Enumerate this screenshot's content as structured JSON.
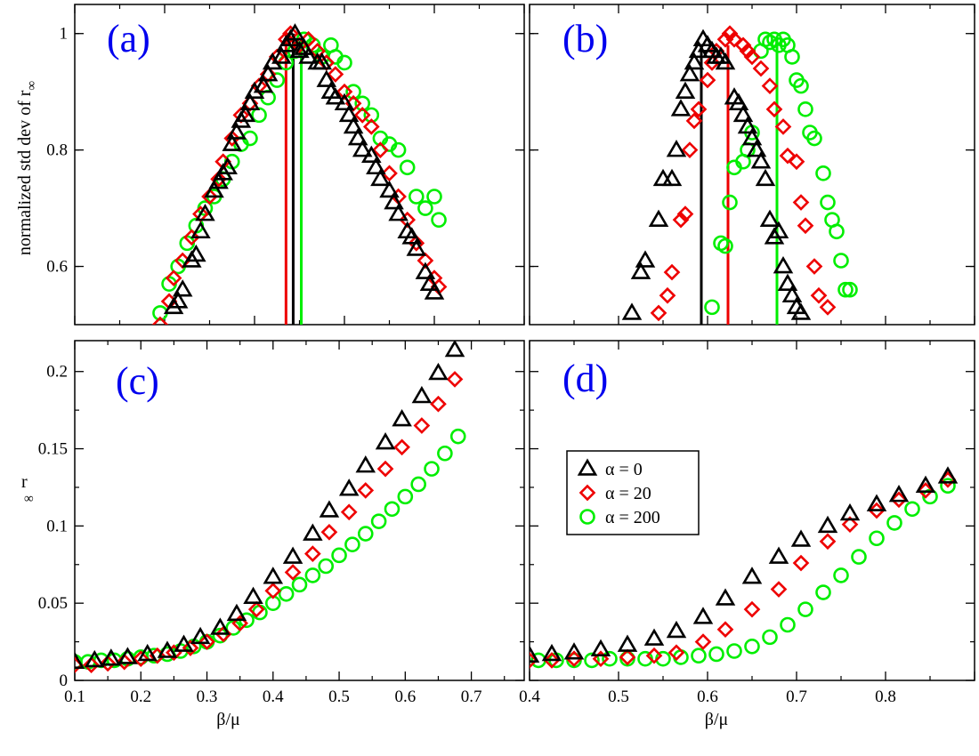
{
  "colors": {
    "alpha0": "#000000",
    "alpha20": "#ee0000",
    "alpha200": "#00ee00",
    "label": "#0000ee"
  },
  "chart_data": [
    {
      "id": "a",
      "type": "scatter",
      "panel_label": "(a)",
      "xlim": [
        0.1,
        0.6
      ],
      "ylim": [
        0.5,
        1.05
      ],
      "ylabel": "normalized std dev of r",
      "ylabel_sub": "∞",
      "xlabel": "",
      "yticks": [
        0.6,
        0.8,
        1.0
      ],
      "ytick_labels": [
        "0.6",
        "0.8",
        "1"
      ],
      "xticks": [],
      "xtick_labels": [],
      "vlines": [
        {
          "series": "α = 0",
          "x": 0.343,
          "y_top": 1.0
        },
        {
          "series": "α = 20",
          "x": 0.335,
          "y_top": 0.99
        },
        {
          "series": "α = 200",
          "x": 0.352,
          "y_top": 0.99
        }
      ],
      "series": [
        {
          "name": "α = 0",
          "marker": "triangle",
          "x": [
            0.21,
            0.215,
            0.22,
            0.23,
            0.235,
            0.24,
            0.245,
            0.255,
            0.26,
            0.265,
            0.27,
            0.275,
            0.28,
            0.285,
            0.29,
            0.295,
            0.3,
            0.31,
            0.315,
            0.32,
            0.33,
            0.335,
            0.34,
            0.345,
            0.35,
            0.355,
            0.36,
            0.37,
            0.375,
            0.38,
            0.385,
            0.39,
            0.4,
            0.405,
            0.41,
            0.415,
            0.42,
            0.43,
            0.435,
            0.44,
            0.45,
            0.455,
            0.46,
            0.47,
            0.475,
            0.48,
            0.49,
            0.495,
            0.5
          ],
          "y": [
            0.53,
            0.54,
            0.56,
            0.61,
            0.62,
            0.66,
            0.69,
            0.73,
            0.745,
            0.76,
            0.77,
            0.81,
            0.83,
            0.85,
            0.86,
            0.88,
            0.9,
            0.91,
            0.93,
            0.95,
            0.96,
            0.98,
            0.99,
            1.0,
            0.97,
            0.975,
            0.96,
            0.95,
            0.95,
            0.92,
            0.9,
            0.89,
            0.88,
            0.86,
            0.84,
            0.82,
            0.8,
            0.79,
            0.77,
            0.75,
            0.73,
            0.71,
            0.69,
            0.66,
            0.65,
            0.63,
            0.59,
            0.57,
            0.555
          ]
        },
        {
          "name": "α = 20",
          "marker": "diamond",
          "x": [
            0.195,
            0.205,
            0.21,
            0.22,
            0.23,
            0.24,
            0.25,
            0.26,
            0.265,
            0.275,
            0.285,
            0.295,
            0.305,
            0.315,
            0.325,
            0.335,
            0.34,
            0.35,
            0.36,
            0.37,
            0.38,
            0.39,
            0.4,
            0.41,
            0.42,
            0.43,
            0.44,
            0.45,
            0.46,
            0.47,
            0.48,
            0.49,
            0.5,
            0.505
          ],
          "y": [
            0.5,
            0.54,
            0.58,
            0.61,
            0.65,
            0.69,
            0.72,
            0.75,
            0.78,
            0.82,
            0.86,
            0.88,
            0.91,
            0.93,
            0.96,
            0.99,
            1.0,
            0.98,
            0.99,
            0.97,
            0.95,
            0.93,
            0.9,
            0.88,
            0.86,
            0.84,
            0.8,
            0.76,
            0.72,
            0.68,
            0.64,
            0.61,
            0.58,
            0.565
          ]
        },
        {
          "name": "α = 200",
          "marker": "circle",
          "x": [
            0.195,
            0.205,
            0.215,
            0.225,
            0.235,
            0.245,
            0.255,
            0.265,
            0.275,
            0.285,
            0.295,
            0.305,
            0.315,
            0.325,
            0.335,
            0.345,
            0.355,
            0.365,
            0.375,
            0.385,
            0.39,
            0.4,
            0.41,
            0.42,
            0.43,
            0.44,
            0.45,
            0.46,
            0.47,
            0.48,
            0.49,
            0.5,
            0.505
          ],
          "y": [
            0.52,
            0.57,
            0.6,
            0.64,
            0.67,
            0.7,
            0.72,
            0.75,
            0.78,
            0.81,
            0.82,
            0.86,
            0.89,
            0.92,
            0.95,
            0.97,
            0.99,
            0.98,
            0.96,
            0.98,
            0.96,
            0.95,
            0.9,
            0.88,
            0.86,
            0.82,
            0.81,
            0.8,
            0.77,
            0.72,
            0.7,
            0.72,
            0.68
          ]
        }
      ]
    },
    {
      "id": "b",
      "type": "scatter",
      "panel_label": "(b)",
      "xlim": [
        0.4,
        0.9
      ],
      "ylim": [
        0.5,
        1.05
      ],
      "ylabel": "",
      "ylabel_sub": "",
      "xlabel": "",
      "yticks": [
        0.6,
        0.8,
        1.0
      ],
      "ytick_labels": [],
      "xticks": [],
      "xtick_labels": [],
      "vlines": [
        {
          "series": "α = 0",
          "x": 0.593,
          "y_top": 0.97
        },
        {
          "series": "α = 20",
          "x": 0.623,
          "y_top": 0.98
        },
        {
          "series": "α = 200",
          "x": 0.678,
          "y_top": 0.99
        }
      ],
      "series": [
        {
          "name": "α = 0",
          "marker": "triangle",
          "x": [
            0.515,
            0.525,
            0.53,
            0.545,
            0.55,
            0.56,
            0.565,
            0.57,
            0.575,
            0.58,
            0.585,
            0.59,
            0.595,
            0.6,
            0.605,
            0.61,
            0.615,
            0.62,
            0.63,
            0.635,
            0.64,
            0.645,
            0.65,
            0.655,
            0.66,
            0.665,
            0.67,
            0.675,
            0.68,
            0.685,
            0.69,
            0.695,
            0.7,
            0.705
          ],
          "y": [
            0.52,
            0.59,
            0.61,
            0.68,
            0.75,
            0.75,
            0.8,
            0.87,
            0.9,
            0.93,
            0.95,
            0.97,
            0.99,
            0.98,
            0.97,
            0.96,
            0.96,
            0.95,
            0.89,
            0.88,
            0.86,
            0.84,
            0.82,
            0.8,
            0.78,
            0.75,
            0.68,
            0.65,
            0.66,
            0.6,
            0.57,
            0.55,
            0.53,
            0.52
          ]
        },
        {
          "name": "α = 20",
          "marker": "diamond",
          "x": [
            0.545,
            0.555,
            0.56,
            0.57,
            0.575,
            0.58,
            0.585,
            0.59,
            0.6,
            0.605,
            0.61,
            0.62,
            0.625,
            0.63,
            0.64,
            0.645,
            0.65,
            0.66,
            0.67,
            0.675,
            0.685,
            0.69,
            0.7,
            0.705,
            0.71,
            0.72,
            0.725,
            0.735
          ],
          "y": [
            0.52,
            0.55,
            0.59,
            0.68,
            0.69,
            0.8,
            0.85,
            0.87,
            0.92,
            0.95,
            0.97,
            0.99,
            1.0,
            0.99,
            0.98,
            0.97,
            0.96,
            0.94,
            0.91,
            0.87,
            0.84,
            0.79,
            0.78,
            0.71,
            0.67,
            0.6,
            0.55,
            0.53
          ]
        },
        {
          "name": "α = 200",
          "marker": "circle",
          "x": [
            0.605,
            0.615,
            0.62,
            0.625,
            0.63,
            0.64,
            0.645,
            0.65,
            0.66,
            0.665,
            0.67,
            0.675,
            0.68,
            0.685,
            0.69,
            0.695,
            0.7,
            0.705,
            0.71,
            0.715,
            0.72,
            0.73,
            0.735,
            0.74,
            0.745,
            0.75,
            0.755,
            0.76
          ],
          "y": [
            0.53,
            0.64,
            0.635,
            0.71,
            0.77,
            0.78,
            0.8,
            0.83,
            0.97,
            0.99,
            0.985,
            0.99,
            0.98,
            0.99,
            0.98,
            0.96,
            0.92,
            0.91,
            0.87,
            0.83,
            0.82,
            0.76,
            0.71,
            0.68,
            0.66,
            0.61,
            0.56,
            0.56
          ]
        }
      ]
    },
    {
      "id": "c",
      "type": "scatter",
      "panel_label": "(c)",
      "xlim": [
        0.1,
        0.78
      ],
      "ylim": [
        0,
        0.22
      ],
      "ylabel": "r",
      "ylabel_sub": "∞",
      "xlabel": "β/μ",
      "yticks": [
        0,
        0.05,
        0.1,
        0.15,
        0.2
      ],
      "ytick_labels": [
        "0",
        "0.05",
        "0.1",
        "0.15",
        "0.2"
      ],
      "xticks": [
        0.1,
        0.2,
        0.3,
        0.4,
        0.5,
        0.6,
        0.7
      ],
      "xtick_labels": [
        "0.1",
        "0.2",
        "0.3",
        "0.4",
        "0.5",
        "0.6",
        "0.7"
      ],
      "vlines": [],
      "series": [
        {
          "name": "α = 0",
          "marker": "triangle",
          "x": [
            0.1,
            0.13,
            0.155,
            0.18,
            0.21,
            0.24,
            0.265,
            0.29,
            0.32,
            0.345,
            0.37,
            0.4,
            0.43,
            0.46,
            0.485,
            0.515,
            0.54,
            0.57,
            0.595,
            0.625,
            0.65,
            0.675
          ],
          "y": [
            0.012,
            0.013,
            0.014,
            0.015,
            0.017,
            0.019,
            0.023,
            0.028,
            0.034,
            0.043,
            0.054,
            0.067,
            0.08,
            0.095,
            0.11,
            0.124,
            0.139,
            0.154,
            0.169,
            0.184,
            0.199,
            0.214
          ]
        },
        {
          "name": "α = 20",
          "marker": "diamond",
          "x": [
            0.1,
            0.125,
            0.15,
            0.175,
            0.2,
            0.225,
            0.25,
            0.275,
            0.3,
            0.325,
            0.35,
            0.375,
            0.4,
            0.43,
            0.46,
            0.485,
            0.515,
            0.54,
            0.57,
            0.595,
            0.625,
            0.65,
            0.675
          ],
          "y": [
            0.01,
            0.01,
            0.011,
            0.012,
            0.014,
            0.016,
            0.018,
            0.021,
            0.025,
            0.03,
            0.037,
            0.046,
            0.058,
            0.07,
            0.082,
            0.096,
            0.109,
            0.123,
            0.137,
            0.151,
            0.165,
            0.179,
            0.195
          ]
        },
        {
          "name": "α = 200",
          "marker": "circle",
          "x": [
            0.1,
            0.12,
            0.14,
            0.16,
            0.18,
            0.2,
            0.22,
            0.24,
            0.26,
            0.28,
            0.3,
            0.32,
            0.34,
            0.36,
            0.38,
            0.4,
            0.42,
            0.44,
            0.46,
            0.48,
            0.5,
            0.52,
            0.54,
            0.56,
            0.58,
            0.6,
            0.62,
            0.64,
            0.66,
            0.68
          ],
          "y": [
            0.012,
            0.012,
            0.013,
            0.013,
            0.014,
            0.015,
            0.016,
            0.017,
            0.019,
            0.022,
            0.025,
            0.029,
            0.034,
            0.039,
            0.044,
            0.05,
            0.056,
            0.062,
            0.068,
            0.074,
            0.081,
            0.088,
            0.095,
            0.103,
            0.111,
            0.119,
            0.127,
            0.137,
            0.147,
            0.158
          ]
        }
      ]
    },
    {
      "id": "d",
      "type": "scatter",
      "panel_label": "(d)",
      "xlim": [
        0.4,
        0.9
      ],
      "ylim": [
        0,
        0.22
      ],
      "ylabel": "",
      "ylabel_sub": "",
      "xlabel": "β/μ",
      "yticks": [
        0,
        0.05,
        0.1,
        0.15,
        0.2
      ],
      "ytick_labels": [],
      "xticks": [
        0.4,
        0.5,
        0.6,
        0.7,
        0.8
      ],
      "xtick_labels": [
        "0.4",
        "0.5",
        "0.6",
        "0.7",
        "0.8"
      ],
      "vlines": [],
      "legend": {
        "position": "center-left"
      },
      "series": [
        {
          "name": "α = 0",
          "marker": "triangle",
          "x": [
            0.4,
            0.425,
            0.45,
            0.48,
            0.51,
            0.54,
            0.565,
            0.595,
            0.62,
            0.65,
            0.68,
            0.705,
            0.735,
            0.76,
            0.79,
            0.815,
            0.845,
            0.87
          ],
          "y": [
            0.016,
            0.017,
            0.018,
            0.02,
            0.023,
            0.027,
            0.032,
            0.041,
            0.053,
            0.067,
            0.08,
            0.091,
            0.1,
            0.108,
            0.114,
            0.12,
            0.126,
            0.132
          ]
        },
        {
          "name": "α = 20",
          "marker": "diamond",
          "x": [
            0.4,
            0.425,
            0.45,
            0.48,
            0.51,
            0.54,
            0.565,
            0.595,
            0.62,
            0.65,
            0.68,
            0.705,
            0.735,
            0.76,
            0.79,
            0.815,
            0.845,
            0.87
          ],
          "y": [
            0.013,
            0.013,
            0.014,
            0.014,
            0.015,
            0.016,
            0.018,
            0.025,
            0.033,
            0.046,
            0.059,
            0.076,
            0.09,
            0.101,
            0.11,
            0.117,
            0.123,
            0.13
          ]
        },
        {
          "name": "α = 200",
          "marker": "circle",
          "x": [
            0.41,
            0.43,
            0.45,
            0.47,
            0.49,
            0.51,
            0.53,
            0.55,
            0.57,
            0.59,
            0.61,
            0.63,
            0.65,
            0.67,
            0.69,
            0.71,
            0.73,
            0.75,
            0.77,
            0.79,
            0.81,
            0.83,
            0.85,
            0.87
          ],
          "y": [
            0.013,
            0.013,
            0.013,
            0.013,
            0.014,
            0.014,
            0.014,
            0.014,
            0.015,
            0.016,
            0.017,
            0.019,
            0.022,
            0.028,
            0.036,
            0.046,
            0.057,
            0.068,
            0.08,
            0.092,
            0.102,
            0.111,
            0.119,
            0.126
          ]
        }
      ]
    }
  ],
  "legend": {
    "entries": [
      {
        "label": "α = 0",
        "marker": "triangle"
      },
      {
        "label": "α = 20",
        "marker": "diamond"
      },
      {
        "label": "α = 200",
        "marker": "circle"
      }
    ]
  }
}
